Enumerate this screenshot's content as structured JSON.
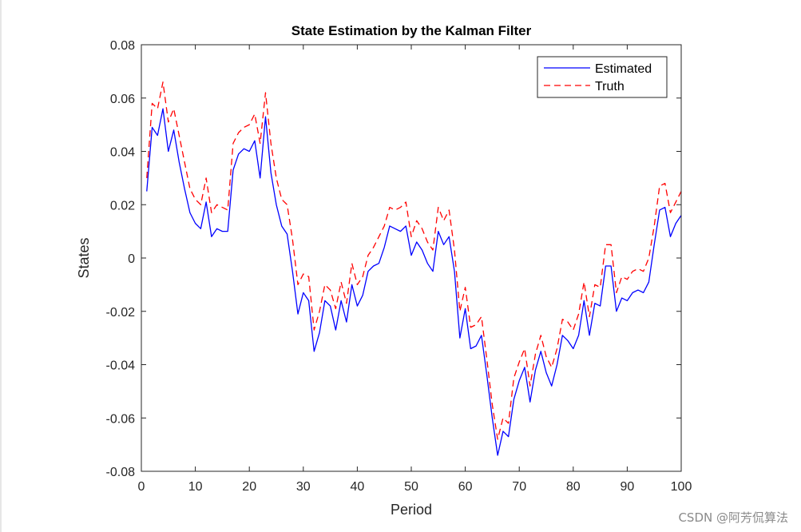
{
  "chart_data": {
    "type": "line",
    "title": "State Estimation by the Kalman Filter",
    "xlabel": "Period",
    "ylabel": "States",
    "xlim": [
      0,
      100
    ],
    "ylim": [
      -0.08,
      0.08
    ],
    "xticks": [
      0,
      10,
      20,
      30,
      40,
      50,
      60,
      70,
      80,
      90,
      100
    ],
    "yticks": [
      -0.08,
      -0.06,
      -0.04,
      -0.02,
      0,
      0.02,
      0.04,
      0.06,
      0.08
    ],
    "xtick_labels": [
      "0",
      "10",
      "20",
      "30",
      "40",
      "50",
      "60",
      "70",
      "80",
      "90",
      "100"
    ],
    "ytick_labels": [
      "-0.08",
      "-0.06",
      "-0.04",
      "-0.02",
      "0",
      "0.02",
      "0.04",
      "0.06",
      "0.08"
    ],
    "legend_position": "top-right",
    "series": [
      {
        "name": "Estimated",
        "color": "#0000ff",
        "style": "solid",
        "x": [
          1,
          2,
          3,
          4,
          5,
          6,
          7,
          8,
          9,
          10,
          11,
          12,
          13,
          14,
          15,
          16,
          17,
          18,
          19,
          20,
          21,
          22,
          23,
          24,
          25,
          26,
          27,
          28,
          29,
          30,
          31,
          32,
          33,
          34,
          35,
          36,
          37,
          38,
          39,
          40,
          41,
          42,
          43,
          44,
          45,
          46,
          47,
          48,
          49,
          50,
          51,
          52,
          53,
          54,
          55,
          56,
          57,
          58,
          59,
          60,
          61,
          62,
          63,
          64,
          65,
          66,
          67,
          68,
          69,
          70,
          71,
          72,
          73,
          74,
          75,
          76,
          77,
          78,
          79,
          80,
          81,
          82,
          83,
          84,
          85,
          86,
          87,
          88,
          89,
          90,
          91,
          92,
          93,
          94,
          95,
          96,
          97,
          98,
          99,
          100
        ],
        "values": [
          0.025,
          0.049,
          0.046,
          0.056,
          0.04,
          0.048,
          0.036,
          0.026,
          0.017,
          0.013,
          0.011,
          0.021,
          0.008,
          0.011,
          0.01,
          0.01,
          0.033,
          0.039,
          0.041,
          0.04,
          0.044,
          0.03,
          0.053,
          0.032,
          0.02,
          0.012,
          0.009,
          -0.005,
          -0.021,
          -0.013,
          -0.016,
          -0.035,
          -0.028,
          -0.016,
          -0.018,
          -0.027,
          -0.016,
          -0.024,
          -0.01,
          -0.018,
          -0.014,
          -0.005,
          -0.003,
          -0.002,
          0.004,
          0.012,
          0.011,
          0.01,
          0.012,
          0.001,
          0.006,
          0.003,
          -0.002,
          -0.005,
          0.01,
          0.005,
          0.008,
          -0.005,
          -0.03,
          -0.019,
          -0.034,
          -0.033,
          -0.029,
          -0.044,
          -0.06,
          -0.074,
          -0.065,
          -0.067,
          -0.053,
          -0.046,
          -0.041,
          -0.054,
          -0.042,
          -0.035,
          -0.043,
          -0.048,
          -0.04,
          -0.029,
          -0.031,
          -0.034,
          -0.029,
          -0.016,
          -0.029,
          -0.017,
          -0.018,
          -0.003,
          -0.003,
          -0.02,
          -0.015,
          -0.016,
          -0.013,
          -0.012,
          -0.013,
          -0.009,
          0.005,
          0.018,
          0.019,
          0.008,
          0.013,
          0.016
        ]
      },
      {
        "name": "Truth",
        "color": "#ff0000",
        "style": "dashed",
        "x": [
          1,
          2,
          3,
          4,
          5,
          6,
          7,
          8,
          9,
          10,
          11,
          12,
          13,
          14,
          15,
          16,
          17,
          18,
          19,
          20,
          21,
          22,
          23,
          24,
          25,
          26,
          27,
          28,
          29,
          30,
          31,
          32,
          33,
          34,
          35,
          36,
          37,
          38,
          39,
          40,
          41,
          42,
          43,
          44,
          45,
          46,
          47,
          48,
          49,
          50,
          51,
          52,
          53,
          54,
          55,
          56,
          57,
          58,
          59,
          60,
          61,
          62,
          63,
          64,
          65,
          66,
          67,
          68,
          69,
          70,
          71,
          72,
          73,
          74,
          75,
          76,
          77,
          78,
          79,
          80,
          81,
          82,
          83,
          84,
          85,
          86,
          87,
          88,
          89,
          90,
          91,
          92,
          93,
          94,
          95,
          96,
          97,
          98,
          99,
          100
        ],
        "values": [
          0.03,
          0.058,
          0.056,
          0.066,
          0.051,
          0.056,
          0.046,
          0.036,
          0.026,
          0.022,
          0.02,
          0.03,
          0.017,
          0.02,
          0.019,
          0.018,
          0.043,
          0.047,
          0.049,
          0.05,
          0.054,
          0.043,
          0.062,
          0.043,
          0.03,
          0.022,
          0.02,
          0.007,
          -0.01,
          -0.006,
          -0.007,
          -0.027,
          -0.02,
          -0.01,
          -0.012,
          -0.019,
          -0.009,
          -0.017,
          -0.002,
          -0.01,
          -0.007,
          0.001,
          0.004,
          0.008,
          0.012,
          0.019,
          0.018,
          0.019,
          0.021,
          0.008,
          0.014,
          0.011,
          0.006,
          0.003,
          0.019,
          0.014,
          0.018,
          0.003,
          -0.02,
          -0.011,
          -0.026,
          -0.025,
          -0.022,
          -0.038,
          -0.055,
          -0.068,
          -0.06,
          -0.062,
          -0.045,
          -0.039,
          -0.034,
          -0.048,
          -0.036,
          -0.029,
          -0.037,
          -0.041,
          -0.034,
          -0.023,
          -0.024,
          -0.027,
          -0.021,
          -0.009,
          -0.022,
          -0.01,
          -0.011,
          0.005,
          0.005,
          -0.013,
          -0.007,
          -0.008,
          -0.005,
          -0.004,
          -0.005,
          0.0,
          0.012,
          0.027,
          0.028,
          0.017,
          0.021,
          0.025
        ]
      }
    ]
  },
  "watermark": "CSDN @阿芳侃算法"
}
